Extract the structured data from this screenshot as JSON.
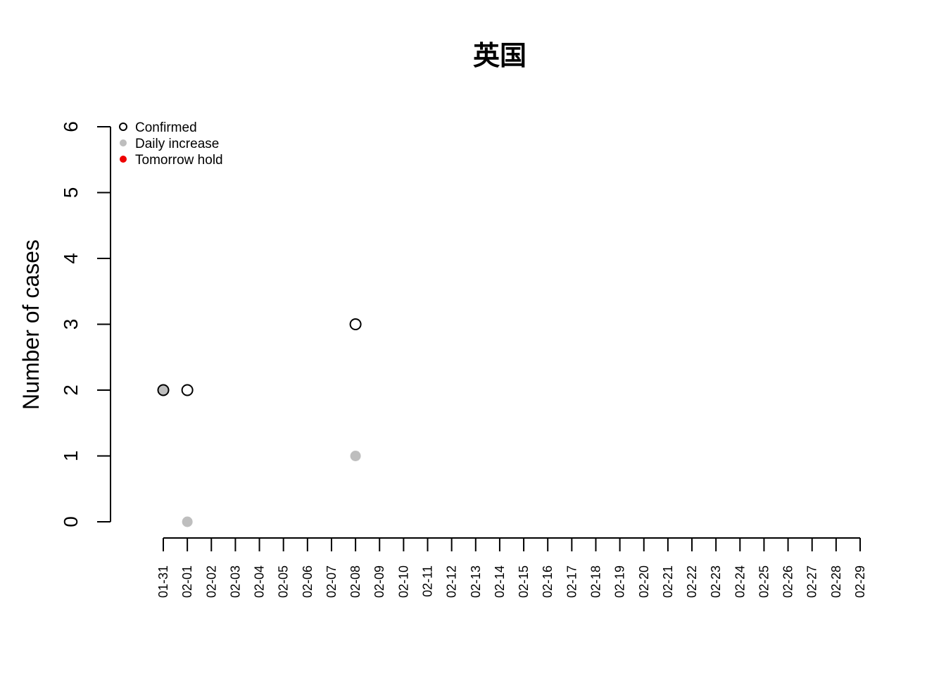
{
  "chart_data": {
    "type": "scatter",
    "title": "英国",
    "xlabel": "",
    "ylabel": "Number of cases",
    "ylim": [
      0,
      6
    ],
    "yticks": [
      "0",
      "1",
      "2",
      "3",
      "4",
      "5",
      "6"
    ],
    "x_categories": [
      "01-31",
      "02-01",
      "02-02",
      "02-03",
      "02-04",
      "02-05",
      "02-06",
      "02-07",
      "02-08",
      "02-09",
      "02-10",
      "02-11",
      "02-12",
      "02-13",
      "02-14",
      "02-15",
      "02-16",
      "02-17",
      "02-18",
      "02-19",
      "02-20",
      "02-21",
      "02-22",
      "02-23",
      "02-24",
      "02-25",
      "02-26",
      "02-27",
      "02-28",
      "02-29"
    ],
    "grid": false,
    "legend_position": "top-left",
    "series": [
      {
        "name": "Confirmed",
        "marker": "open-circle",
        "color": "#000000",
        "points": [
          {
            "x": "01-31",
            "y": 2
          },
          {
            "x": "02-01",
            "y": 2
          },
          {
            "x": "02-08",
            "y": 3
          }
        ]
      },
      {
        "name": "Daily increase",
        "marker": "filled-circle",
        "color": "#bebebe",
        "points": [
          {
            "x": "01-31",
            "y": 2
          },
          {
            "x": "02-01",
            "y": 0
          },
          {
            "x": "02-08",
            "y": 1
          }
        ]
      },
      {
        "name": "Tomorrow hold",
        "marker": "filled-circle",
        "color": "#ee0000",
        "points": []
      }
    ]
  }
}
